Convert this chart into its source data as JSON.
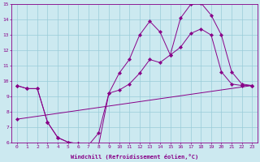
{
  "xlabel": "Windchill (Refroidissement éolien,°C)",
  "xlim": [
    -0.5,
    23.5
  ],
  "ylim": [
    6,
    15
  ],
  "xticks": [
    0,
    1,
    2,
    3,
    4,
    5,
    6,
    7,
    8,
    9,
    10,
    11,
    12,
    13,
    14,
    15,
    16,
    17,
    18,
    19,
    20,
    21,
    22,
    23
  ],
  "yticks": [
    6,
    7,
    8,
    9,
    10,
    11,
    12,
    13,
    14,
    15
  ],
  "bg_color": "#cce9f0",
  "line_color": "#880088",
  "grid_color": "#99ccd8",
  "line1_x": [
    0,
    1,
    2,
    3,
    4,
    5,
    6,
    7,
    8,
    9,
    10,
    11,
    12,
    13,
    14,
    15,
    16,
    17,
    18,
    19,
    20,
    21,
    22,
    23
  ],
  "line1_y": [
    9.7,
    9.5,
    9.5,
    7.3,
    6.3,
    6.0,
    5.9,
    5.8,
    5.8,
    9.2,
    9.4,
    9.8,
    10.5,
    11.4,
    11.2,
    11.7,
    12.2,
    13.1,
    13.4,
    13.0,
    10.6,
    9.8,
    9.7,
    9.7
  ],
  "line2_x": [
    0,
    1,
    2,
    3,
    4,
    5,
    6,
    7,
    8,
    9,
    10,
    11,
    12,
    13,
    14,
    15,
    16,
    17,
    18,
    19,
    20,
    21,
    22,
    23
  ],
  "line2_y": [
    9.7,
    9.5,
    9.5,
    7.3,
    6.3,
    6.0,
    5.9,
    5.8,
    6.6,
    9.2,
    10.5,
    11.4,
    13.0,
    13.9,
    13.2,
    11.7,
    14.1,
    15.0,
    15.1,
    14.3,
    13.0,
    10.6,
    9.8,
    9.7
  ],
  "line3_x": [
    0,
    23
  ],
  "line3_y": [
    7.5,
    9.7
  ],
  "marker": "D",
  "markersize": 2.2,
  "linewidth": 0.7
}
